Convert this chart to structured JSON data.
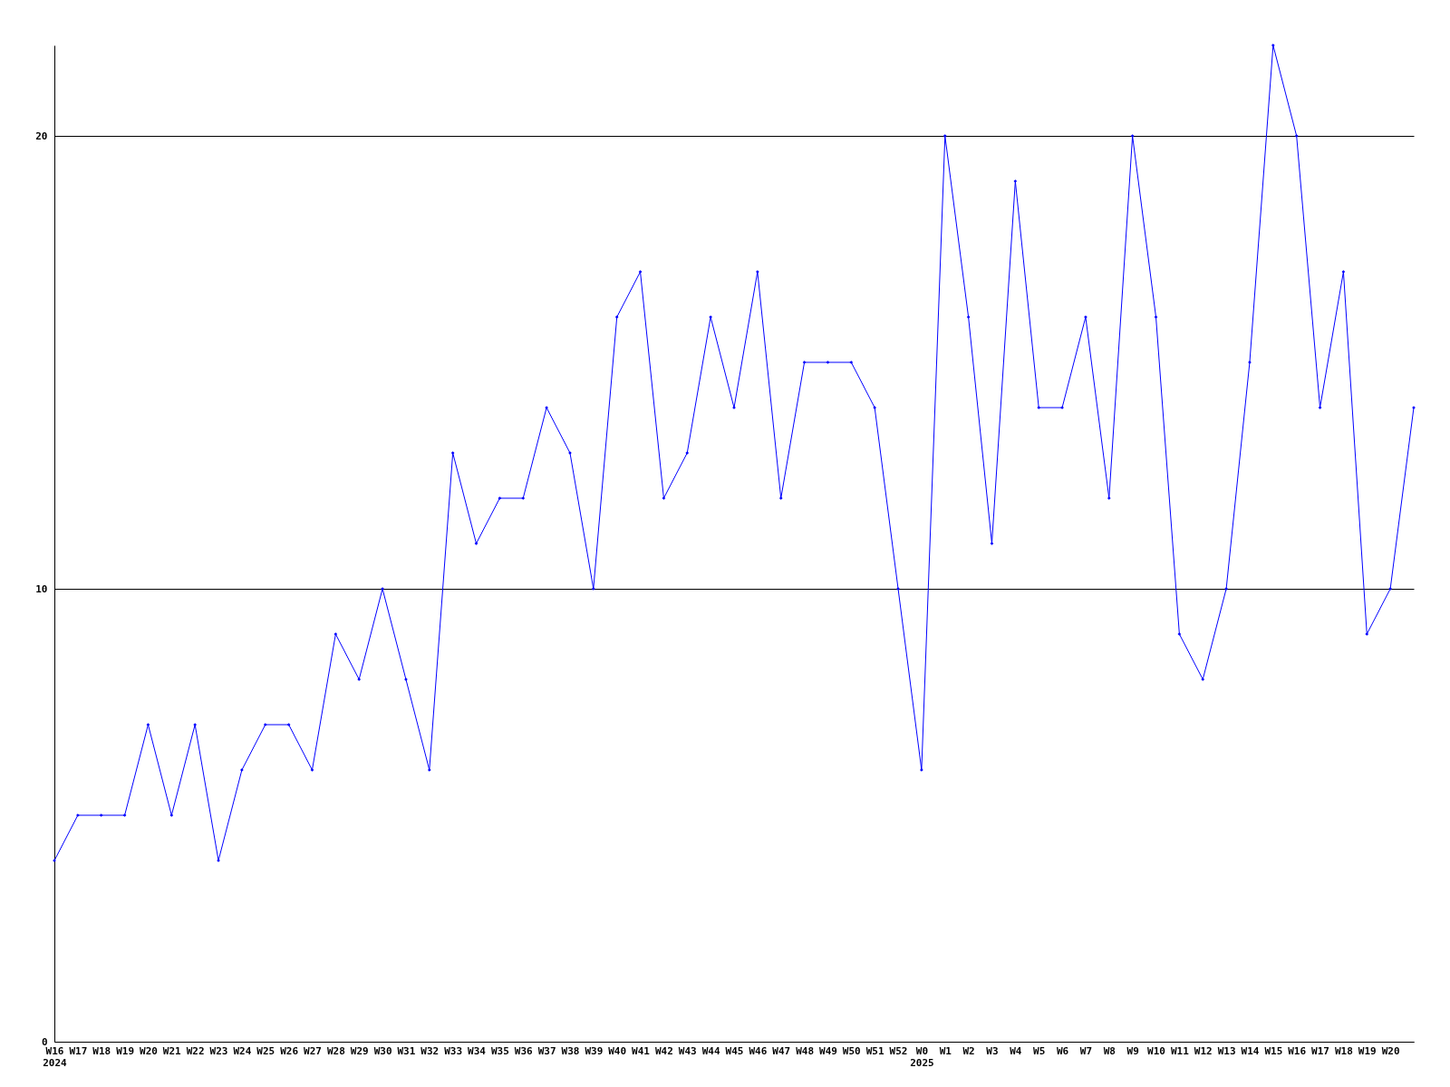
{
  "chart_data": {
    "type": "line",
    "categories": [
      "W16\n2024",
      "W17",
      "W18",
      "W19",
      "W20",
      "W21",
      "W22",
      "W23",
      "W24",
      "W25",
      "W26",
      "W27",
      "W28",
      "W29",
      "W30",
      "W31",
      "W32",
      "W33",
      "W34",
      "W35",
      "W36",
      "W37",
      "W38",
      "W39",
      "W40",
      "W41",
      "W42",
      "W43",
      "W44",
      "W45",
      "W46",
      "W47",
      "W48",
      "W49",
      "W50",
      "W51",
      "W52",
      "W0\n2025",
      "W1",
      "W2",
      "W3",
      "W4",
      "W5",
      "W6",
      "W7",
      "W8",
      "W9",
      "W10",
      "W11",
      "W12",
      "W13",
      "W14",
      "W15",
      "W16",
      "W17",
      "W18",
      "W19",
      "W20",
      null
    ],
    "series": [
      {
        "color": "#0000ff",
        "values": [
          4,
          5,
          5,
          5,
          7,
          5,
          7,
          4,
          6,
          7,
          7,
          6,
          9,
          8,
          10,
          8,
          6,
          13,
          11,
          12,
          12,
          14,
          13,
          10,
          16,
          17,
          12,
          13,
          16,
          14,
          17,
          12,
          15,
          15,
          15,
          14,
          10,
          6,
          20,
          16,
          11,
          19,
          14,
          14,
          16,
          12,
          20,
          16,
          9,
          8,
          10,
          15,
          22,
          20,
          14,
          17,
          9,
          10,
          14
        ]
      }
    ],
    "ylim": [
      0,
      22
    ],
    "yticks": [
      0,
      10,
      20
    ],
    "grid": "y",
    "marker": "diamond",
    "line_style": "solid",
    "legend": false
  }
}
